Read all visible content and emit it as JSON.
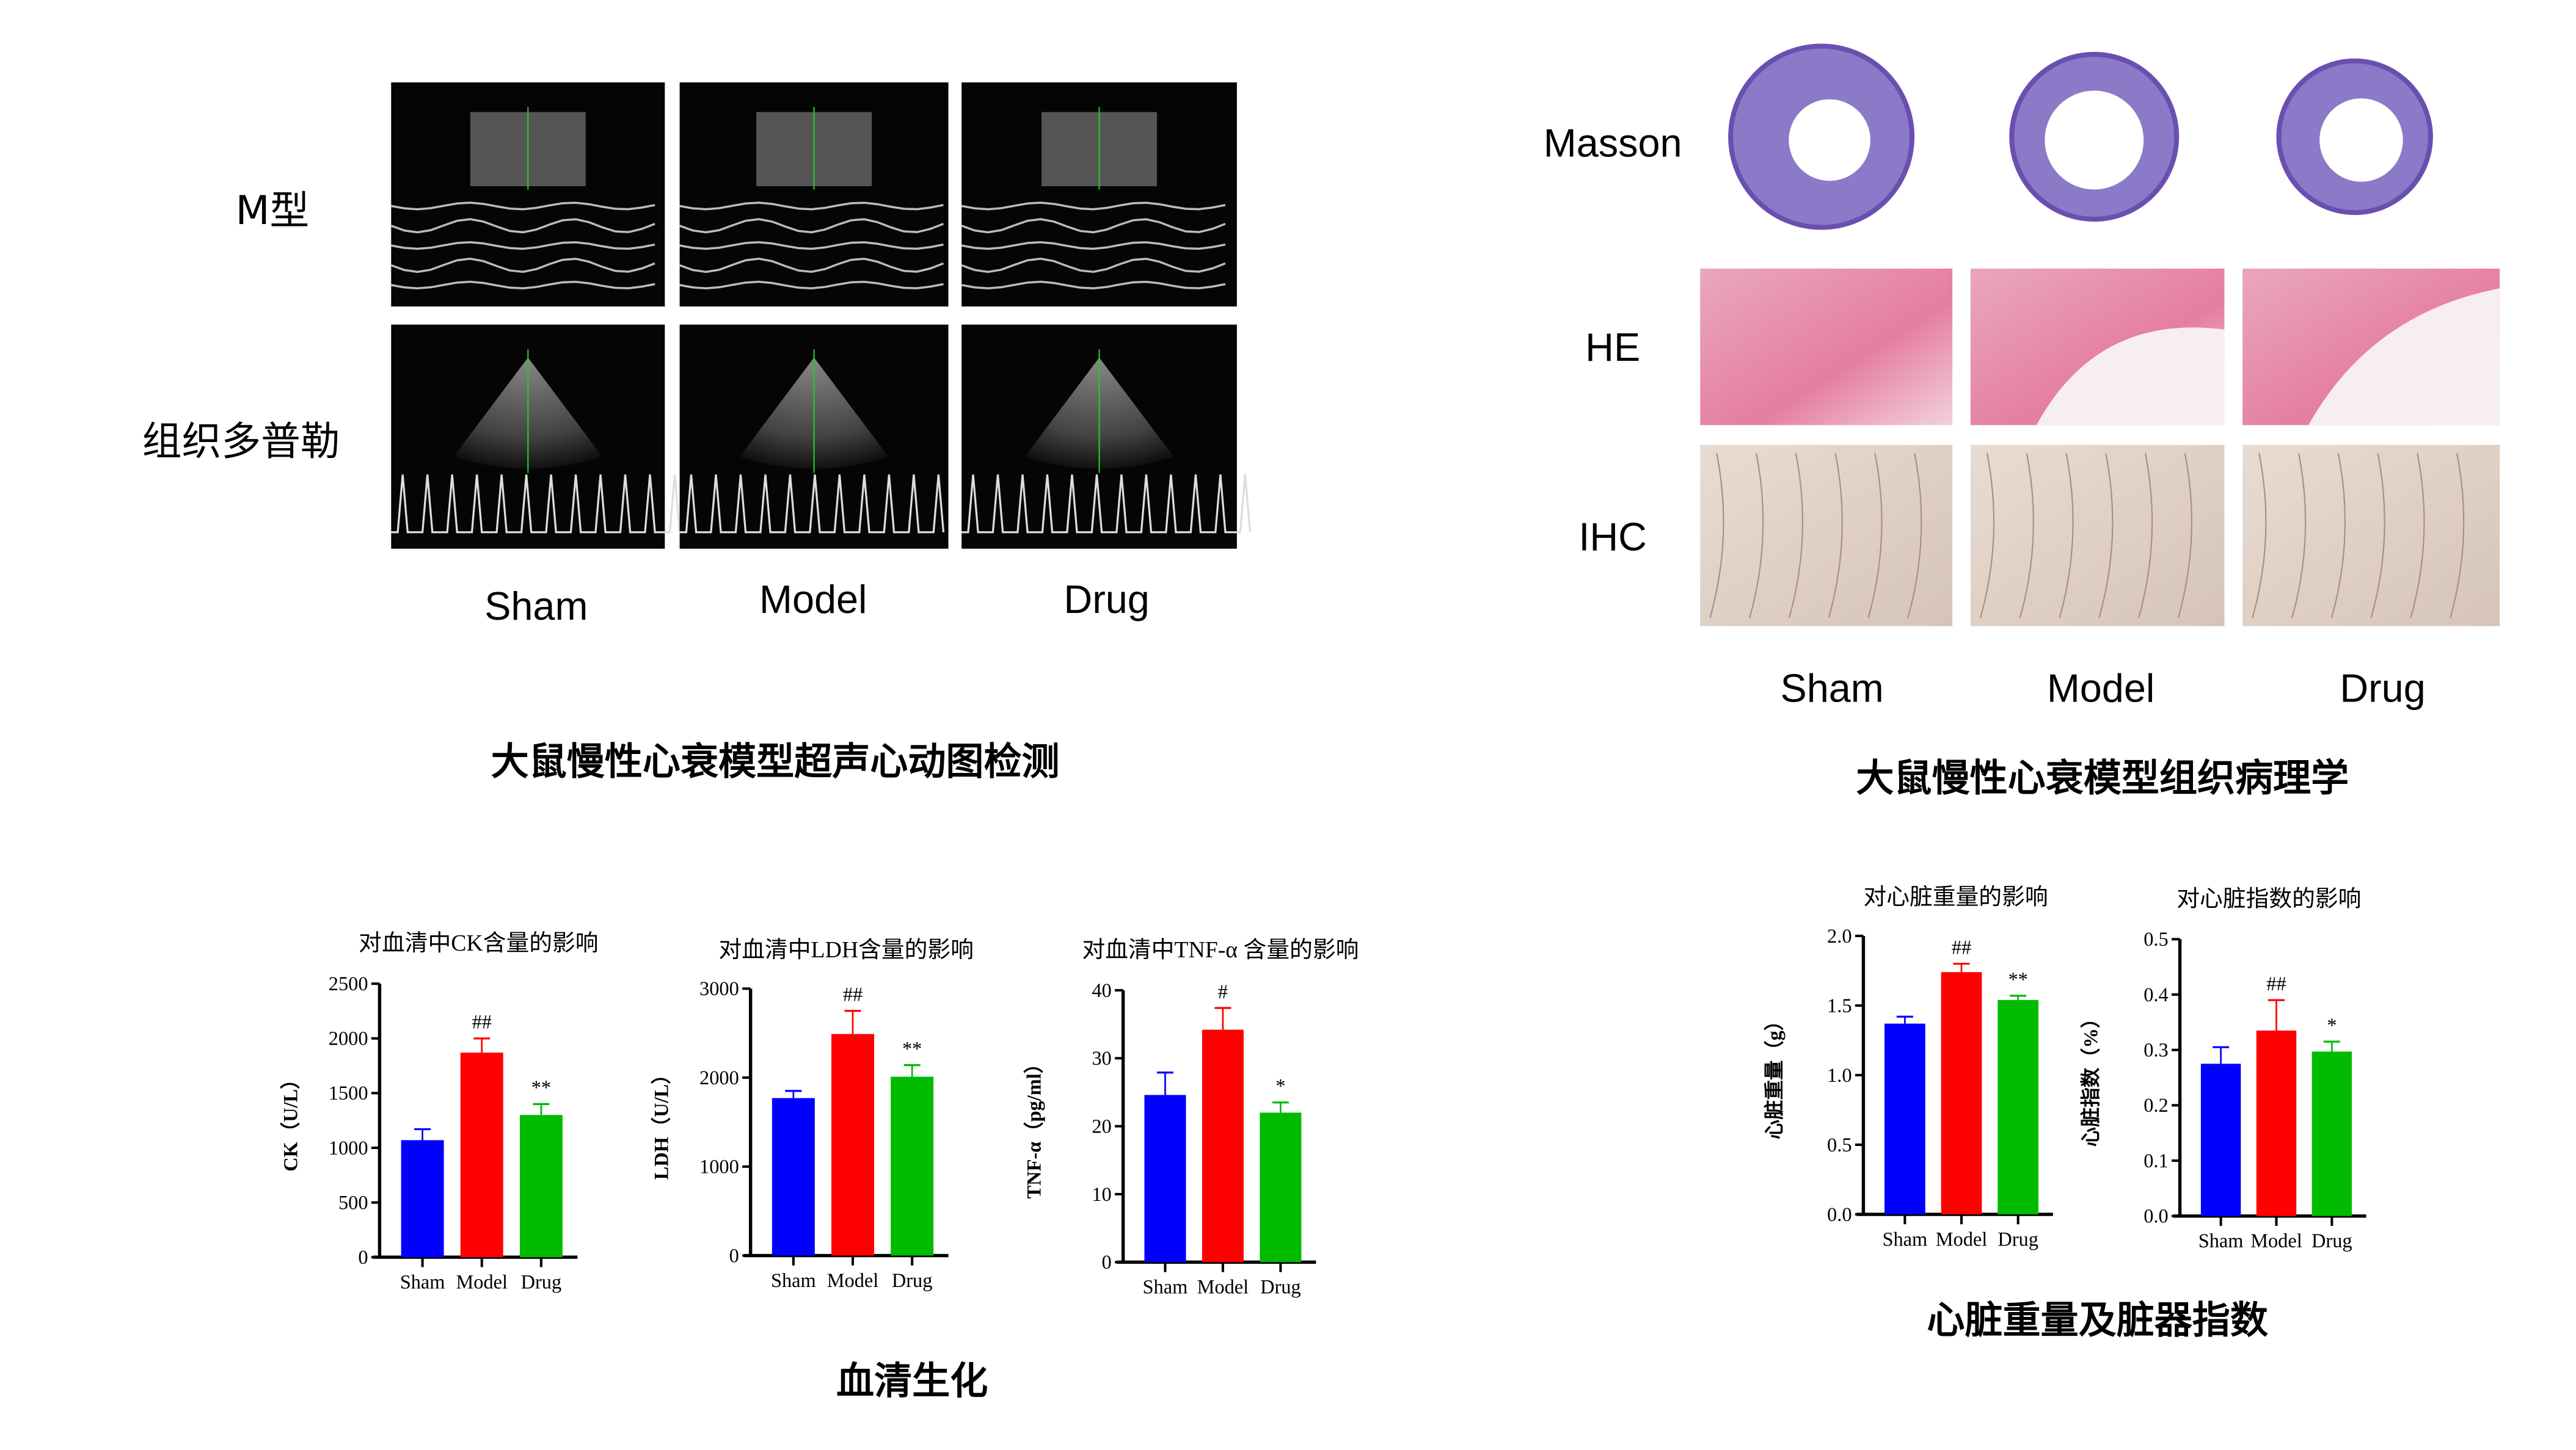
{
  "echo": {
    "row_labels": [
      "M型",
      "组织多普勒"
    ],
    "group_labels": [
      "Sham",
      "Model",
      "Drug"
    ],
    "title": "大鼠慢性心衰模型超声心动图检测"
  },
  "histology": {
    "row_labels": [
      "Masson",
      "HE",
      "IHC"
    ],
    "group_labels": [
      "Sham",
      "Model",
      "Drug"
    ],
    "title": "大鼠慢性心衰模型组织病理学"
  },
  "serum_title": "血清生化",
  "heart_title": "心脏重量及脏器指数",
  "colors": {
    "Sham": "#0000ff",
    "Model": "#ff0000",
    "Drug": "#00bb00"
  },
  "chart_data": [
    {
      "type": "bar",
      "title": "对血清中CK含量的影响",
      "ylabel": "CK（U/L）",
      "categories": [
        "Sham",
        "Model",
        "Drug"
      ],
      "values": [
        1070,
        1870,
        1300
      ],
      "errors": [
        100,
        130,
        100
      ],
      "annotations": [
        "",
        "##",
        "**"
      ],
      "ylim": [
        0,
        2500
      ],
      "yticks": [
        "0",
        "500",
        "1000",
        "1500",
        "2000",
        "2500"
      ]
    },
    {
      "type": "bar",
      "title": "对血清中LDH含量的影响",
      "ylabel": "LDH（U/L）",
      "categories": [
        "Sham",
        "Model",
        "Drug"
      ],
      "values": [
        1770,
        2490,
        2010
      ],
      "errors": [
        80,
        260,
        130
      ],
      "annotations": [
        "",
        "##",
        "**"
      ],
      "ylim": [
        0,
        3000
      ],
      "yticks": [
        "0",
        "1000",
        "2000",
        "3000"
      ]
    },
    {
      "type": "bar",
      "title": "对血清中TNF-α 含量的影响",
      "ylabel": "TNF-α（pg/ml）",
      "categories": [
        "Sham",
        "Model",
        "Drug"
      ],
      "values": [
        24.6,
        34.2,
        22.0
      ],
      "errors": [
        3.3,
        3.2,
        1.5
      ],
      "annotations": [
        "",
        "#",
        "*"
      ],
      "ylim": [
        0,
        40
      ],
      "yticks": [
        "0",
        "10",
        "20",
        "30",
        "40"
      ]
    },
    {
      "type": "bar",
      "title": "对心脏重量的影响",
      "ylabel": "心脏重量（g）",
      "categories": [
        "Sham",
        "Model",
        "Drug"
      ],
      "values": [
        1.37,
        1.74,
        1.54
      ],
      "errors": [
        0.05,
        0.06,
        0.03
      ],
      "annotations": [
        "",
        "##",
        "**"
      ],
      "ylim": [
        0,
        2.0
      ],
      "yticks": [
        "0.0",
        "0.5",
        "1.0",
        "1.5",
        "2.0"
      ]
    },
    {
      "type": "bar",
      "title": "对心脏指数的影响",
      "ylabel": "心脏指数（%）",
      "categories": [
        "Sham",
        "Model",
        "Drug"
      ],
      "values": [
        0.275,
        0.335,
        0.297
      ],
      "errors": [
        0.03,
        0.055,
        0.018
      ],
      "annotations": [
        "",
        "##",
        "*"
      ],
      "ylim": [
        0,
        0.5
      ],
      "yticks": [
        "0.0",
        "0.1",
        "0.2",
        "0.3",
        "0.4",
        "0.5"
      ]
    }
  ]
}
